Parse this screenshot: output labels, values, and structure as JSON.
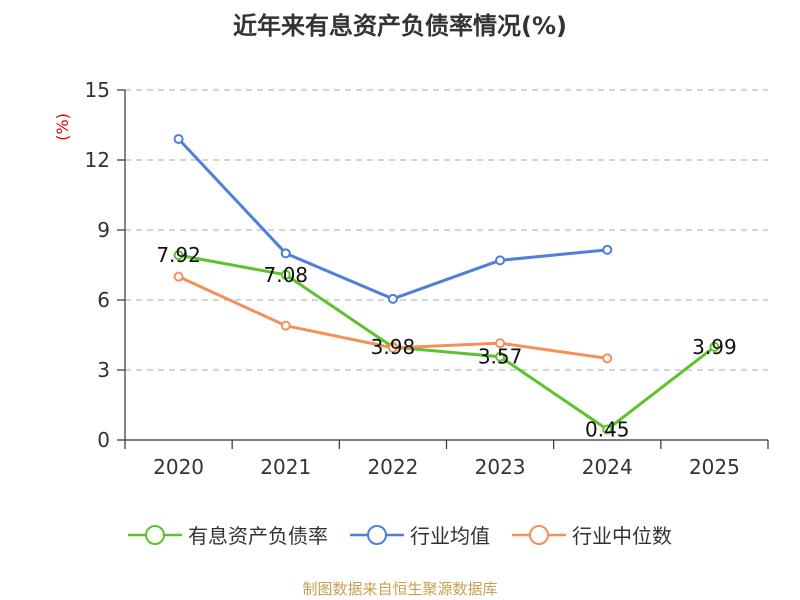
{
  "chart_data": {
    "type": "line",
    "title": "近年来有息资产负债率情况(%)",
    "ylabel": "(%)",
    "xlabel": "",
    "categories": [
      "2020",
      "2021",
      "2022",
      "2023",
      "2024",
      "2025"
    ],
    "ylim": [
      0,
      15
    ],
    "yticks": [
      0,
      3,
      6,
      9,
      12,
      15
    ],
    "grid": true,
    "legend_position": "bottom",
    "series": [
      {
        "name": "有息资产负债率",
        "color": "#5cc22e",
        "values": [
          7.92,
          7.08,
          3.98,
          3.57,
          0.45,
          3.99
        ],
        "labels": [
          "7.92",
          "7.08",
          "3.98",
          "3.57",
          "0.45",
          "3.99"
        ]
      },
      {
        "name": "行业均值",
        "color": "#4e7fdc",
        "values": [
          12.9,
          8.0,
          6.05,
          7.7,
          8.15,
          null
        ]
      },
      {
        "name": "行业中位数",
        "color": "#f4905a",
        "values": [
          7.0,
          4.9,
          3.95,
          4.15,
          3.5,
          null
        ]
      }
    ]
  },
  "source": "制图数据来自恒生聚源数据库"
}
